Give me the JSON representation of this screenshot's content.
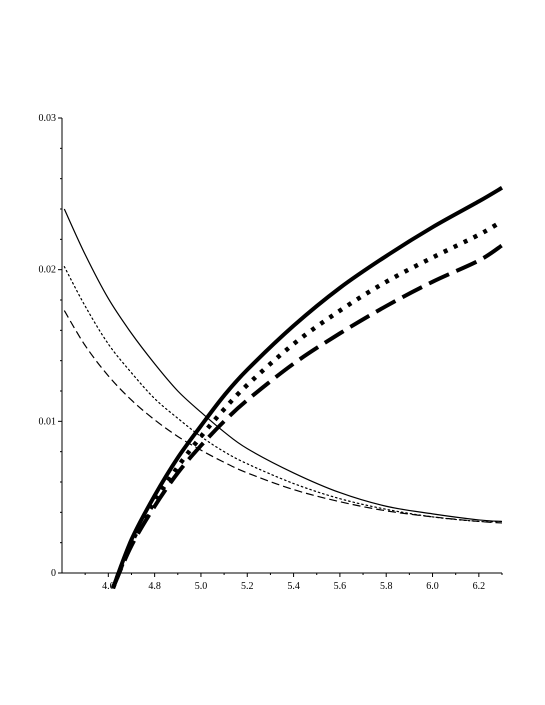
{
  "chart_data": {
    "type": "line",
    "title": "",
    "xlabel": "",
    "ylabel": "",
    "xlim": [
      4.4,
      6.3
    ],
    "ylim": [
      0,
      0.03
    ],
    "grid": false,
    "legend": "none",
    "x_ticks": [
      4.6,
      4.8,
      5.0,
      5.2,
      5.4,
      5.6,
      5.8,
      6.0,
      6.2
    ],
    "x_tick_labels": [
      "4.6",
      "4.8",
      "5.0",
      "5.2",
      "5.4",
      "5.6",
      "5.8",
      "6.0",
      "6.2"
    ],
    "y_ticks": [
      0,
      0.01,
      0.02,
      0.03
    ],
    "y_tick_labels": [
      "0",
      "0.01",
      "0.02",
      "0.03"
    ],
    "series": [
      {
        "style": "thin-solid",
        "x": [
          4.41,
          4.5,
          4.6,
          4.7,
          4.8,
          4.9,
          5.0,
          5.1,
          5.2,
          5.4,
          5.6,
          5.8,
          6.0,
          6.2,
          6.3
        ],
        "values": [
          0.024,
          0.021,
          0.0181,
          0.0158,
          0.0138,
          0.012,
          0.0106,
          0.0093,
          0.0082,
          0.0066,
          0.0053,
          0.0044,
          0.0039,
          0.0035,
          0.0034
        ]
      },
      {
        "style": "thin-dotted",
        "x": [
          4.41,
          4.5,
          4.6,
          4.7,
          4.8,
          4.9,
          5.0,
          5.1,
          5.2,
          5.4,
          5.6,
          5.8,
          6.0,
          6.2,
          6.3
        ],
        "values": [
          0.0202,
          0.0176,
          0.0151,
          0.0132,
          0.0115,
          0.0102,
          0.009,
          0.008,
          0.0072,
          0.0059,
          0.0049,
          0.0042,
          0.0037,
          0.0034,
          0.0034
        ]
      },
      {
        "style": "thin-dashed",
        "x": [
          4.41,
          4.5,
          4.6,
          4.7,
          4.8,
          4.9,
          5.0,
          5.1,
          5.2,
          5.4,
          5.6,
          5.8,
          6.0,
          6.2,
          6.3
        ],
        "values": [
          0.0173,
          0.015,
          0.013,
          0.0114,
          0.0101,
          0.009,
          0.0081,
          0.0073,
          0.0066,
          0.0055,
          0.0047,
          0.0041,
          0.0037,
          0.0034,
          0.0033
        ]
      },
      {
        "style": "thick-solid",
        "x": [
          4.62,
          4.7,
          4.8,
          4.9,
          5.0,
          5.1,
          5.2,
          5.4,
          5.6,
          5.8,
          6.0,
          6.2,
          6.3
        ],
        "values": [
          -0.001,
          0.0022,
          0.0051,
          0.0076,
          0.0097,
          0.0117,
          0.0134,
          0.0163,
          0.0188,
          0.0209,
          0.0228,
          0.0245,
          0.0254
        ]
      },
      {
        "style": "thick-dotted",
        "x": [
          4.62,
          4.7,
          4.8,
          4.9,
          5.0,
          5.1,
          5.2,
          5.4,
          5.6,
          5.8,
          6.0,
          6.2,
          6.3
        ],
        "values": [
          -0.001,
          0.002,
          0.0047,
          0.007,
          0.009,
          0.0108,
          0.0124,
          0.0151,
          0.0173,
          0.0192,
          0.0208,
          0.0223,
          0.0232
        ]
      },
      {
        "style": "thick-dashed",
        "x": [
          4.62,
          4.7,
          4.8,
          4.9,
          5.0,
          5.1,
          5.2,
          5.4,
          5.6,
          5.8,
          6.0,
          6.2,
          6.3
        ],
        "values": [
          -0.001,
          0.0018,
          0.0044,
          0.0066,
          0.0084,
          0.01,
          0.0114,
          0.0138,
          0.0158,
          0.0176,
          0.0192,
          0.0206,
          0.0216
        ]
      }
    ]
  }
}
